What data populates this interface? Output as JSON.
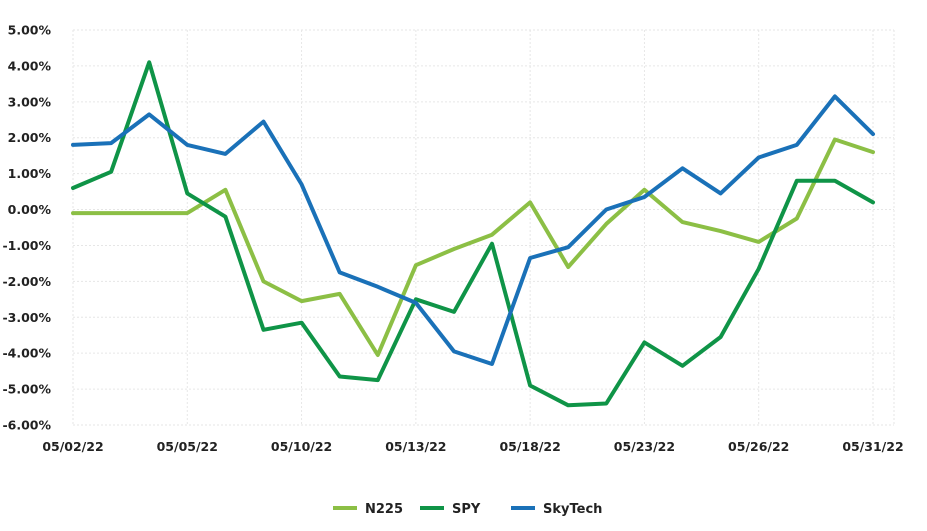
{
  "chart_data": {
    "type": "line",
    "title": "",
    "xlabel": "",
    "ylabel": "",
    "ylim": [
      -6,
      5
    ],
    "y_ticks": [
      5,
      4,
      3,
      2,
      1,
      0,
      -1,
      -2,
      -3,
      -4,
      -5,
      -6
    ],
    "y_tick_labels": [
      "5.00%",
      "4.00%",
      "3.00%",
      "2.00%",
      "1.00%",
      "0.00%",
      "-1.00%",
      "-2.00%",
      "-3.00%",
      "-4.00%",
      "-5.00%",
      "-6.00%"
    ],
    "x_tick_labels": [
      "05/02/22",
      "05/05/22",
      "05/10/22",
      "05/13/22",
      "05/18/22",
      "05/23/22",
      "05/26/22",
      "05/31/22"
    ],
    "x_tick_indices": [
      0,
      3,
      6,
      9,
      12,
      15,
      18,
      21
    ],
    "x": [
      "05/02/22",
      "05/03/22",
      "05/04/22",
      "05/05/22",
      "05/06/22",
      "05/09/22",
      "05/10/22",
      "05/11/22",
      "05/12/22",
      "05/13/22",
      "05/16/22",
      "05/17/22",
      "05/18/22",
      "05/19/22",
      "05/20/22",
      "05/23/22",
      "05/24/22",
      "05/25/22",
      "05/26/22",
      "05/27/22",
      "05/30/22",
      "05/31/22"
    ],
    "grid": true,
    "legend_position": "bottom",
    "series": [
      {
        "name": "N225",
        "color": "#8cbf45",
        "values": [
          -0.1,
          -0.1,
          -0.1,
          -0.1,
          0.55,
          -2.0,
          -2.55,
          -2.35,
          -4.05,
          -1.55,
          -1.1,
          -0.7,
          0.2,
          -1.6,
          -0.4,
          0.55,
          -0.35,
          -0.6,
          -0.9,
          -0.25,
          1.95,
          1.6
        ]
      },
      {
        "name": "SPY",
        "color": "#0f9447",
        "values": [
          0.6,
          1.05,
          4.1,
          0.45,
          -0.2,
          -3.35,
          -3.15,
          -4.65,
          -4.75,
          -2.5,
          -2.85,
          -0.95,
          -4.9,
          -5.45,
          -5.4,
          -3.7,
          -4.35,
          -3.55,
          -1.65,
          0.8,
          0.8,
          0.2
        ]
      },
      {
        "name": "SkyTech",
        "color": "#1a71b8",
        "values": [
          1.8,
          1.85,
          2.65,
          1.8,
          1.55,
          2.45,
          0.7,
          -1.75,
          -2.15,
          -2.6,
          -3.95,
          -4.3,
          -1.35,
          -1.05,
          0.0,
          0.35,
          1.15,
          0.45,
          1.45,
          1.8,
          3.15,
          2.1
        ]
      }
    ]
  }
}
